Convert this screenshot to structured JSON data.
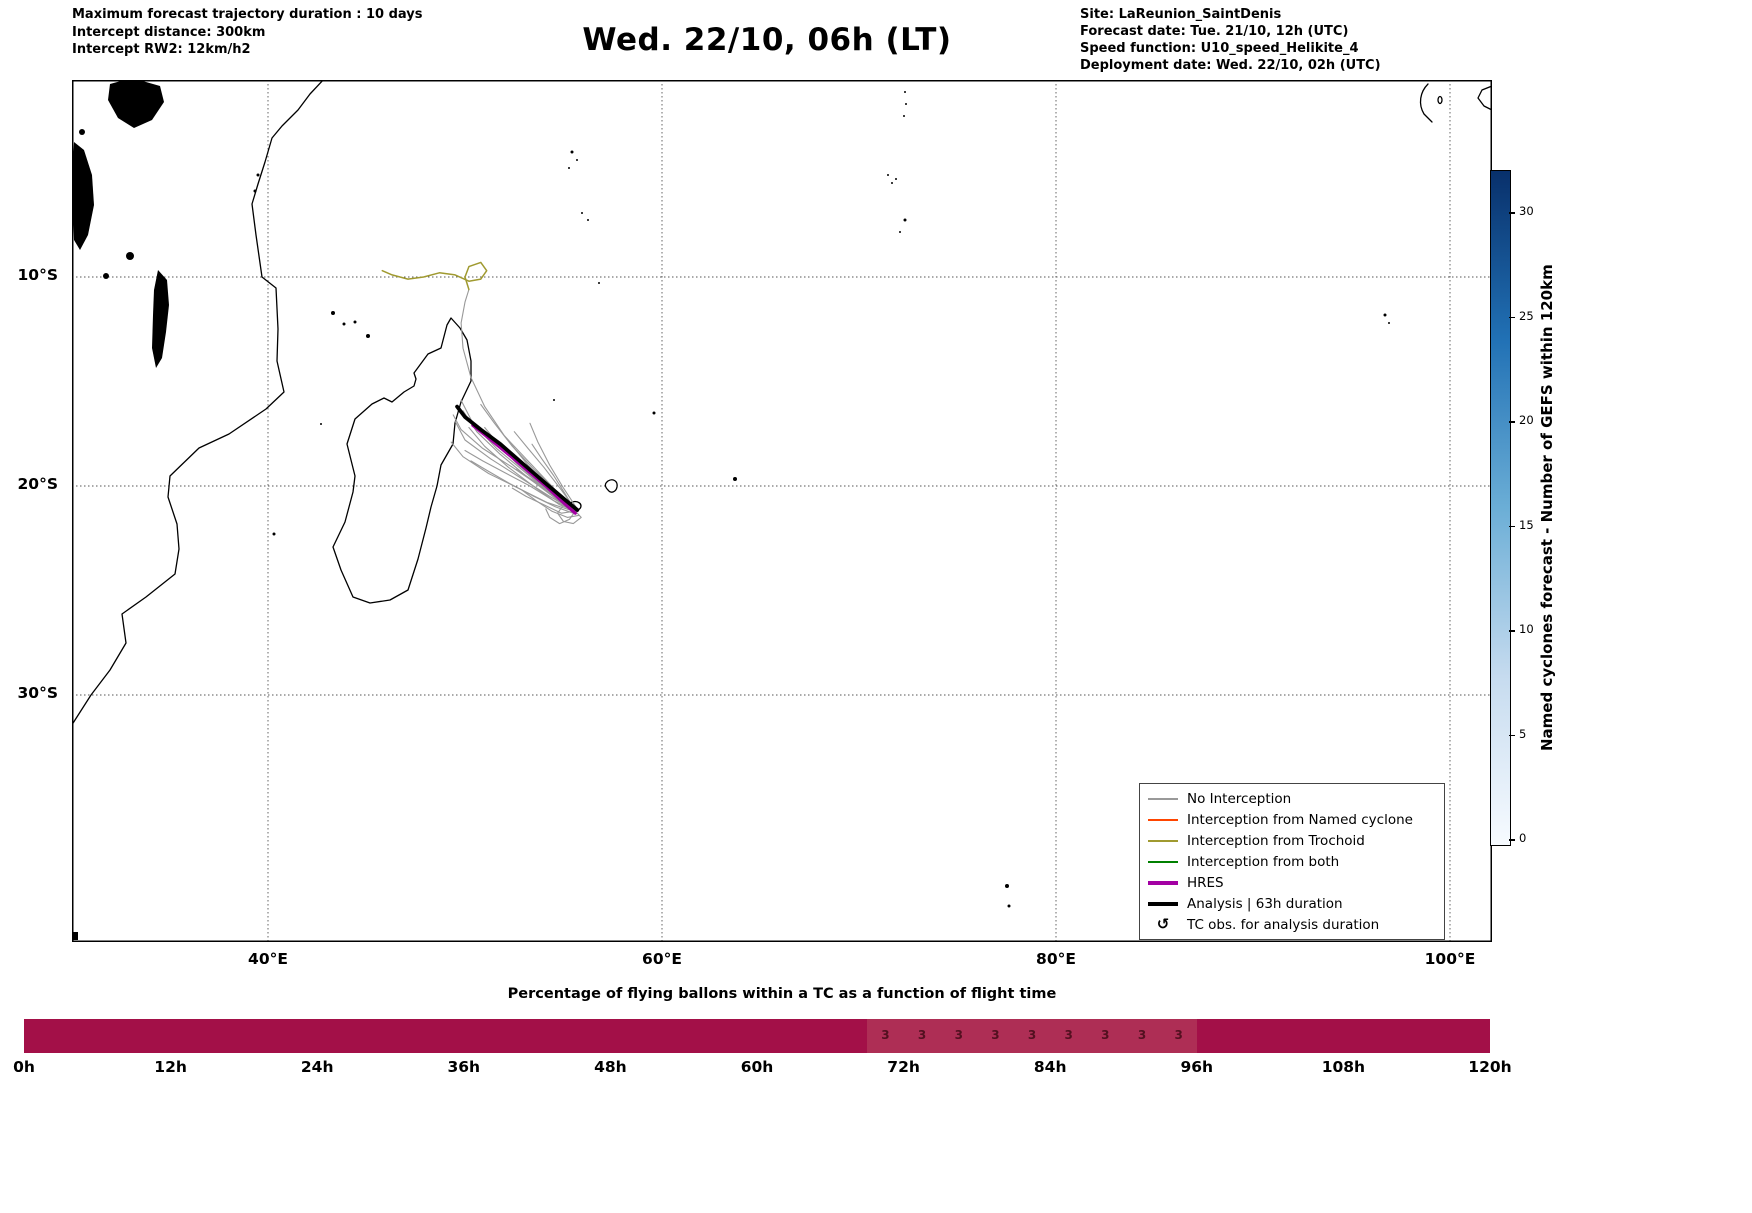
{
  "header": {
    "left_lines": [
      "Maximum forecast trajectory duration : 10 days",
      "Intercept distance: 300km",
      "Intercept RW2: 12km/h2"
    ],
    "title": "Wed. 22/10, 06h (LT)",
    "right_lines": [
      "Site: LaReunion_SaintDenis",
      "Forecast date: Tue. 21/10, 12h (UTC)",
      "Speed function: U10_speed_Helikite_4",
      "Deployment date: Wed. 22/10, 02h (UTC)"
    ]
  },
  "map": {
    "x_tick_labels": [
      "40°E",
      "60°E",
      "80°E",
      "100°E"
    ],
    "x_tick_lons": [
      40,
      60,
      80,
      100
    ],
    "y_tick_labels": [
      "10°S",
      "20°S",
      "30°S"
    ],
    "y_tick_lats": [
      10,
      20,
      30
    ],
    "legend": [
      {
        "label": "No Interception",
        "color": "#999999",
        "lw": 2
      },
      {
        "label": "Interception from Named cyclone",
        "color": "#ff4500",
        "lw": 2
      },
      {
        "label": "Interception from Trochoid",
        "color": "#a09a30",
        "lw": 2
      },
      {
        "label": "Interception from both",
        "color": "#008000",
        "lw": 2
      },
      {
        "label": "HRES",
        "color": "#a300a3",
        "lw": 4
      },
      {
        "label": "Analysis | 63h duration",
        "color": "#000000",
        "lw": 4
      },
      {
        "label": "TC obs. for analysis duration",
        "symbol": "↺"
      }
    ]
  },
  "colorbar": {
    "label": "Named cyclones forecast - Number of GEFS within 120km",
    "ticks": [
      0,
      5,
      10,
      15,
      20,
      25,
      30
    ],
    "gradient": [
      "#08306b",
      "#2171b5",
      "#6baed6",
      "#c6dbef",
      "#f7fbff"
    ]
  },
  "bottom_chart": {
    "title": "Percentage of flying ballons within a TC as a function of flight time",
    "x_tick_labels": [
      "0h",
      "12h",
      "24h",
      "36h",
      "48h",
      "60h",
      "72h",
      "84h",
      "96h",
      "108h",
      "120h"
    ],
    "bar_color": "#a31048",
    "segment_color": "#ae2e55",
    "segment_value_labels": [
      "3",
      "3",
      "3",
      "3",
      "3",
      "3",
      "3",
      "3",
      "3"
    ],
    "segment_label_color": "#531020"
  },
  "chart_data": [
    {
      "type": "line",
      "title": "Wed. 22/10, 06h (LT)",
      "projection": "geographic (lon °E, lat °S)",
      "xlim_lonE": [
        30,
        102
      ],
      "ylim_latS": [
        41.5,
        0.5
      ],
      "grid": "dotted",
      "legend_position": "lower right",
      "series": [
        {
          "name": "No Interception",
          "color": "#999999",
          "lw": 1.1,
          "tracks": [
            [
              [
                55.6,
                21.2
              ],
              [
                54.6,
                20.6
              ],
              [
                53.2,
                19.6
              ],
              [
                51.8,
                18.5
              ],
              [
                50.6,
                17.4
              ],
              [
                49.9,
                16.4
              ]
            ],
            [
              [
                55.6,
                21.2
              ],
              [
                54.8,
                20.9
              ],
              [
                53.6,
                20.1
              ],
              [
                52.2,
                19.1
              ],
              [
                51.0,
                18.1
              ],
              [
                50.2,
                17.2
              ]
            ],
            [
              [
                55.7,
                21.3
              ],
              [
                54.9,
                20.5
              ],
              [
                53.8,
                19.4
              ],
              [
                52.8,
                18.4
              ],
              [
                52.0,
                17.6
              ]
            ],
            [
              [
                55.5,
                21.1
              ],
              [
                54.4,
                20.4
              ],
              [
                53.0,
                19.3
              ],
              [
                51.6,
                18.2
              ],
              [
                50.4,
                17.0
              ],
              [
                49.8,
                15.9
              ]
            ],
            [
              [
                55.6,
                21.2
              ],
              [
                55.0,
                20.8
              ],
              [
                54.2,
                20.2
              ],
              [
                53.4,
                19.7
              ],
              [
                52.6,
                19.2
              ]
            ],
            [
              [
                55.6,
                21.2
              ],
              [
                54.5,
                20.7
              ],
              [
                53.3,
                20.0
              ],
              [
                52.1,
                19.4
              ],
              [
                50.9,
                18.8
              ],
              [
                50.0,
                18.3
              ]
            ],
            [
              [
                55.7,
                21.2
              ],
              [
                54.7,
                20.3
              ],
              [
                53.5,
                19.2
              ],
              [
                52.4,
                18.1
              ],
              [
                51.5,
                17.0
              ],
              [
                50.8,
                16.1
              ]
            ],
            [
              [
                55.5,
                21.3
              ],
              [
                54.6,
                21.0
              ],
              [
                53.5,
                20.5
              ],
              [
                52.3,
                19.9
              ],
              [
                51.2,
                19.3
              ],
              [
                50.3,
                18.8
              ]
            ],
            [
              [
                55.6,
                21.1
              ],
              [
                54.9,
                20.2
              ],
              [
                54.0,
                19.1
              ],
              [
                53.2,
                18.2
              ],
              [
                52.5,
                17.4
              ]
            ],
            [
              [
                55.6,
                21.2
              ],
              [
                54.3,
                20.5
              ],
              [
                52.8,
                19.6
              ],
              [
                51.3,
                18.7
              ],
              [
                50.0,
                17.8
              ],
              [
                49.5,
                16.9
              ]
            ],
            [
              [
                55.8,
                21.4
              ],
              [
                55.2,
                21.5
              ],
              [
                54.4,
                21.2
              ],
              [
                53.6,
                20.7
              ],
              [
                52.9,
                20.2
              ]
            ],
            [
              [
                55.6,
                21.2
              ],
              [
                55.1,
                20.4
              ],
              [
                54.5,
                19.5
              ],
              [
                53.9,
                18.7
              ],
              [
                53.4,
                18.0
              ]
            ],
            [
              [
                55.5,
                21.2
              ],
              [
                54.2,
                20.8
              ],
              [
                52.7,
                20.1
              ],
              [
                51.2,
                19.4
              ],
              [
                49.9,
                18.6
              ],
              [
                49.3,
                17.9
              ]
            ],
            [
              [
                55.6,
                21.3
              ],
              [
                54.8,
                20.7
              ],
              [
                53.7,
                19.8
              ],
              [
                52.6,
                18.9
              ],
              [
                51.7,
                18.0
              ],
              [
                51.0,
                17.2
              ]
            ],
            [
              [
                55.7,
                21.1
              ],
              [
                55.0,
                20.1
              ],
              [
                54.3,
                19.0
              ],
              [
                53.7,
                17.9
              ],
              [
                53.3,
                17.0
              ]
            ],
            [
              [
                55.6,
                21.2
              ],
              [
                54.5,
                20.3
              ],
              [
                53.2,
                19.0
              ],
              [
                52.0,
                17.6
              ],
              [
                51.0,
                16.2
              ],
              [
                50.3,
                14.8
              ],
              [
                49.9,
                13.4
              ],
              [
                49.8,
                12.2
              ],
              [
                50.0,
                11.2
              ],
              [
                50.2,
                10.6
              ]
            ],
            [
              [
                55.6,
                21.2
              ],
              [
                55.9,
                21.5
              ],
              [
                55.5,
                21.8
              ],
              [
                55.0,
                21.7
              ],
              [
                54.7,
                21.3
              ],
              [
                55.0,
                20.9
              ]
            ],
            [
              [
                55.6,
                21.2
              ],
              [
                55.3,
                21.6
              ],
              [
                54.8,
                21.8
              ],
              [
                54.3,
                21.5
              ],
              [
                54.1,
                21.1
              ]
            ],
            [
              [
                55.6,
                21.2
              ],
              [
                54.9,
                21.3
              ],
              [
                54.0,
                20.9
              ],
              [
                53.1,
                20.5
              ],
              [
                52.4,
                20.1
              ]
            ],
            [
              [
                55.6,
                21.2
              ],
              [
                54.1,
                20.2
              ],
              [
                52.4,
                19.1
              ],
              [
                50.9,
                18.2
              ],
              [
                49.8,
                17.3
              ],
              [
                49.4,
                16.6
              ]
            ]
          ]
        },
        {
          "name": "Interception from Named cyclone",
          "color": "#ff4500",
          "lw": 1.3,
          "tracks": []
        },
        {
          "name": "Interception from Trochoid",
          "color": "#a09a30",
          "lw": 1.5,
          "tracks": [
            [
              [
                50.2,
                10.6
              ],
              [
                50.0,
                10.0
              ],
              [
                50.2,
                9.5
              ],
              [
                50.8,
                9.3
              ],
              [
                51.1,
                9.7
              ],
              [
                50.8,
                10.1
              ],
              [
                50.2,
                10.2
              ],
              [
                49.5,
                9.9
              ],
              [
                48.7,
                9.8
              ],
              [
                47.9,
                10.0
              ],
              [
                47.1,
                10.1
              ],
              [
                46.3,
                9.9
              ],
              [
                45.8,
                9.7
              ]
            ]
          ]
        },
        {
          "name": "Interception from both",
          "color": "#008000",
          "lw": 1.3,
          "tracks": []
        },
        {
          "name": "HRES",
          "color": "#a300a3",
          "lw": 3.2,
          "tracks": [
            [
              [
                55.6,
                21.3
              ],
              [
                55.0,
                20.8
              ],
              [
                54.1,
                20.0
              ],
              [
                53.1,
                19.2
              ],
              [
                52.1,
                18.4
              ],
              [
                51.2,
                17.7
              ],
              [
                50.4,
                17.1
              ]
            ]
          ]
        },
        {
          "name": "Analysis | 63h duration",
          "color": "#000000",
          "lw": 3.8,
          "tracks": [
            [
              [
                55.7,
                21.15
              ],
              [
                55.0,
                20.6
              ],
              [
                54.0,
                19.8
              ],
              [
                52.9,
                18.9
              ],
              [
                51.8,
                18.0
              ],
              [
                50.8,
                17.3
              ],
              [
                50.0,
                16.7
              ],
              [
                49.6,
                16.2
              ]
            ]
          ]
        }
      ]
    },
    {
      "type": "bar",
      "title": "Percentage of flying ballons within a TC as a function of flight time",
      "x_unit": "hours",
      "x_ticks_h": [
        0,
        12,
        24,
        36,
        48,
        60,
        72,
        84,
        96,
        108,
        120
      ],
      "bars": [
        {
          "start_h": 0,
          "end_h": 120,
          "height_fraction": 1.0,
          "color": "#a31048"
        }
      ],
      "annotations": [
        {
          "start_h": 70.5,
          "end_h": 94.5,
          "step_h": 3,
          "text": "3"
        }
      ]
    },
    {
      "type": "colorbar",
      "label": "Named cyclones forecast - Number of GEFS within 120km",
      "range": [
        0,
        32
      ],
      "ticks": [
        0,
        5,
        10,
        15,
        20,
        25,
        30
      ],
      "colormap": "Blues"
    }
  ]
}
